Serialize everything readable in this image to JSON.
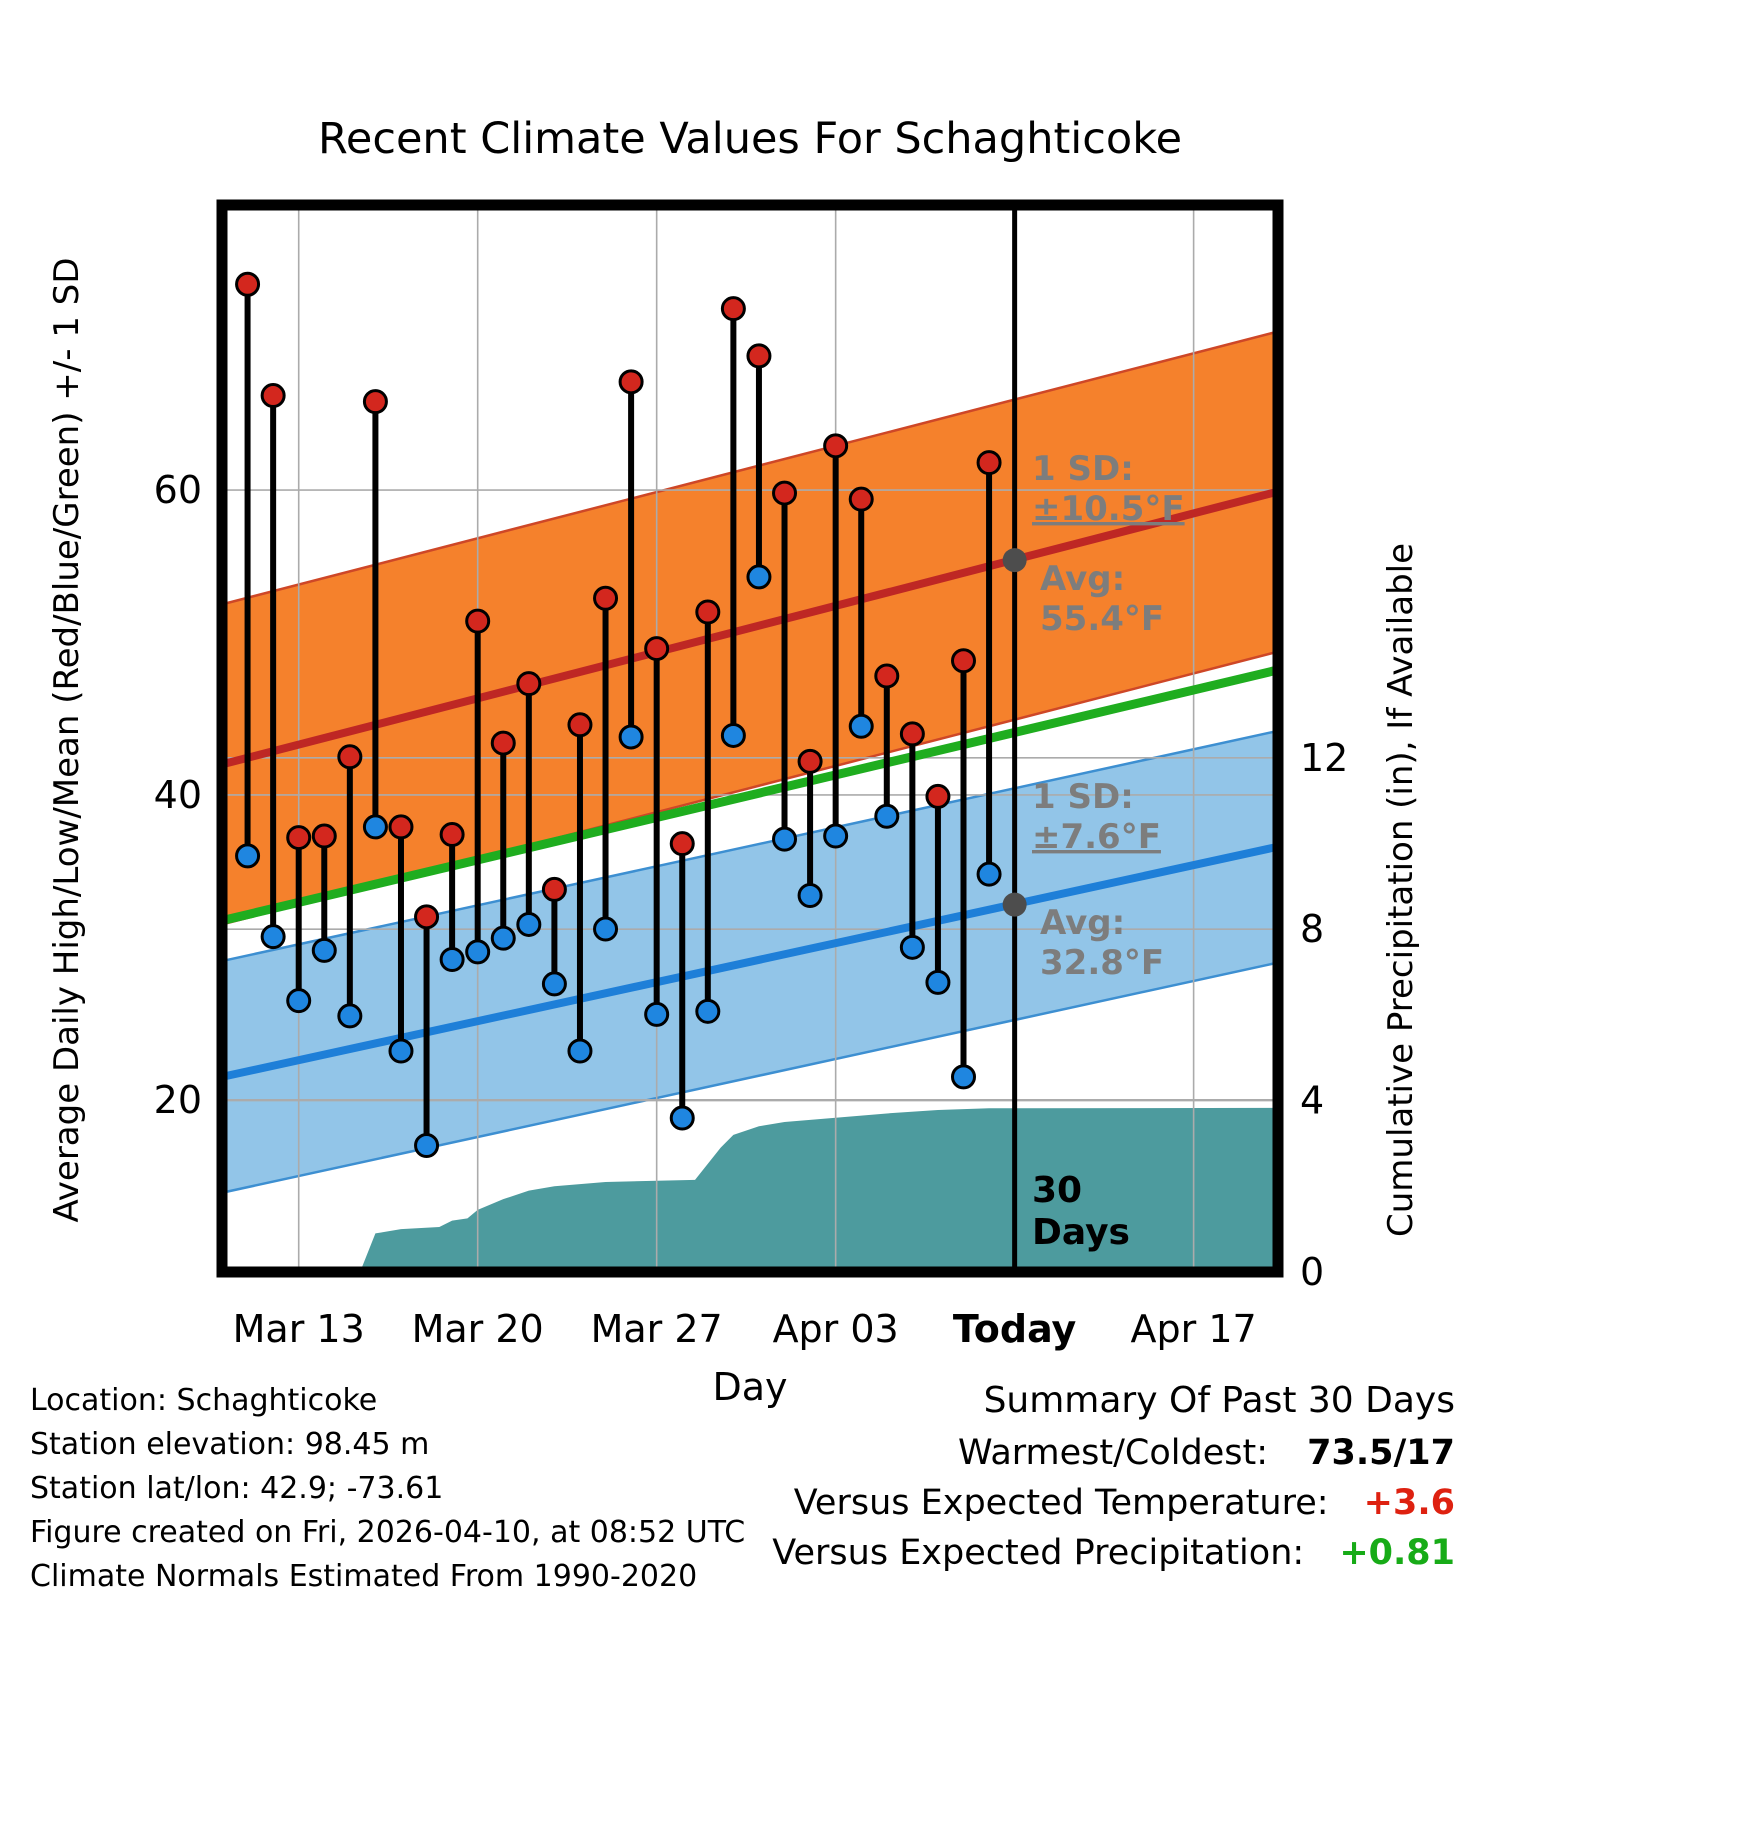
{
  "title": "Recent Climate Values For Schaghticoke",
  "axes": {
    "left_label": "Average Daily High/Low/Mean (Red/Blue/Green) +/- 1 SD",
    "right_label": "Cumulative Precipitation (in), If Available",
    "x_label": "Day"
  },
  "annotations": {
    "high_sd_line1": "1 SD:",
    "high_sd_line2": "±10.5°F",
    "high_avg_line1": "Avg:",
    "high_avg_line2": "55.4°F",
    "low_sd_line1": "1 SD:",
    "low_sd_line2": "±7.6°F",
    "low_avg_line1": "Avg:",
    "low_avg_line2": "32.8°F",
    "today_span_line1": "30",
    "today_span_line2": "Days"
  },
  "footer_left": [
    "Location: Schaghticoke",
    "Station elevation: 98.45 m",
    "Station lat/lon: 42.9; -73.61",
    "Figure created on Fri, 2026-04-10, at 08:52 UTC",
    "Climate Normals Estimated From 1990-2020"
  ],
  "summary": {
    "title": "Summary Of Past 30 Days",
    "warmest_coldest_label": "Warmest/Coldest:",
    "warmest_coldest_value": "73.5/17",
    "vs_temp_label": "Versus Expected Temperature:",
    "vs_temp_value": "+3.6",
    "vs_precip_label": "Versus Expected Precipitation:",
    "vs_precip_value": "+0.81"
  },
  "colors": {
    "high_band": "#F5812C",
    "high_band_edge": "#CE4727",
    "high_line": "#BE2724",
    "low_band": "#92C5E8",
    "low_band_edge": "#3D8FD1",
    "low_line": "#1E7FD8",
    "mean_line": "#1FAD1F",
    "precip_fill": "#4D9B9E",
    "marker_high": "#D3271E",
    "marker_low": "#1F86E0",
    "marker_outline": "#000000",
    "today_line": "#000000",
    "today_marker": "#4D4D4D",
    "annotation_gray": "#7D7D7D",
    "grid": "#ABABAB",
    "summary_temp": "#DE2110",
    "summary_precip": "#17AB17"
  },
  "chart_data": {
    "type": "line",
    "title": "Recent Climate Values For Schaghticoke",
    "xlabel": "Day",
    "ylabel_left": "Average Daily High/Low/Mean (Red/Blue/Green) +/- 1 SD",
    "ylabel_right": "Cumulative Precipitation (in), If Available",
    "x_axis": {
      "unit": "days since Mar 10",
      "domain": [
        0,
        41.3
      ],
      "ticks": [
        {
          "day": 3,
          "label": "Mar 13",
          "bold": false
        },
        {
          "day": 10,
          "label": "Mar 20",
          "bold": false
        },
        {
          "day": 17,
          "label": "Mar 27",
          "bold": false
        },
        {
          "day": 24,
          "label": "Apr 03",
          "bold": false
        },
        {
          "day": 31,
          "label": "Today",
          "bold": true
        },
        {
          "day": 38,
          "label": "Apr 17",
          "bold": false
        }
      ]
    },
    "temp_axis": {
      "range": [
        8.7,
        78.7
      ],
      "ticks": [
        20,
        40,
        60
      ]
    },
    "precip_axis": {
      "range": [
        0,
        24.9
      ],
      "ticks": [
        0,
        4,
        8,
        12
      ]
    },
    "today_day": 31,
    "grid": true,
    "climatology": {
      "high": {
        "avg_start": 42.0,
        "avg_end": 59.9,
        "avg_today": 55.4,
        "sd": 10.5
      },
      "low": {
        "avg_start": 21.5,
        "avg_end": 36.6,
        "avg_today": 32.8,
        "sd": 7.6
      },
      "mean": {
        "start": 31.75,
        "end": 48.2
      }
    },
    "daily": [
      {
        "day": 1,
        "date": "Mar 11",
        "high": 73.5,
        "low": 36.0
      },
      {
        "day": 2,
        "date": "Mar 12",
        "high": 66.2,
        "low": 30.7
      },
      {
        "day": 3,
        "date": "Mar 13",
        "high": 37.2,
        "low": 26.5
      },
      {
        "day": 4,
        "date": "Mar 14",
        "high": 37.3,
        "low": 29.8
      },
      {
        "day": 5,
        "date": "Mar 15",
        "high": 42.5,
        "low": 25.5
      },
      {
        "day": 6,
        "date": "Mar 16",
        "high": 65.8,
        "low": 37.9
      },
      {
        "day": 7,
        "date": "Mar 17",
        "high": 37.9,
        "low": 23.2
      },
      {
        "day": 8,
        "date": "Mar 18",
        "high": 32.0,
        "low": 17.0
      },
      {
        "day": 9,
        "date": "Mar 19",
        "high": 37.4,
        "low": 29.2
      },
      {
        "day": 10,
        "date": "Mar 20",
        "high": 51.4,
        "low": 29.7
      },
      {
        "day": 11,
        "date": "Mar 21",
        "high": 43.4,
        "low": 30.6
      },
      {
        "day": 12,
        "date": "Mar 22",
        "high": 47.3,
        "low": 31.5
      },
      {
        "day": 13,
        "date": "Mar 23",
        "high": 33.8,
        "low": 27.6
      },
      {
        "day": 14,
        "date": "Mar 24",
        "high": 44.6,
        "low": 23.2
      },
      {
        "day": 15,
        "date": "Mar 25",
        "high": 52.9,
        "low": 31.2
      },
      {
        "day": 16,
        "date": "Mar 26",
        "high": 67.1,
        "low": 43.8
      },
      {
        "day": 17,
        "date": "Mar 27",
        "high": 49.6,
        "low": 25.6
      },
      {
        "day": 18,
        "date": "Mar 28",
        "high": 36.8,
        "low": 18.8
      },
      {
        "day": 19,
        "date": "Mar 29",
        "high": 52.0,
        "low": 25.8
      },
      {
        "day": 20,
        "date": "Mar 30",
        "high": 71.9,
        "low": 43.9
      },
      {
        "day": 21,
        "date": "Mar 31",
        "high": 68.8,
        "low": 54.3
      },
      {
        "day": 22,
        "date": "Apr 01",
        "high": 59.8,
        "low": 37.1
      },
      {
        "day": 23,
        "date": "Apr 02",
        "high": 42.2,
        "low": 33.4
      },
      {
        "day": 24,
        "date": "Apr 03",
        "high": 62.9,
        "low": 37.3
      },
      {
        "day": 25,
        "date": "Apr 04",
        "high": 59.4,
        "low": 44.5
      },
      {
        "day": 26,
        "date": "Apr 05",
        "high": 47.8,
        "low": 38.6
      },
      {
        "day": 27,
        "date": "Apr 06",
        "high": 44.0,
        "low": 30.0
      },
      {
        "day": 28,
        "date": "Apr 07",
        "high": 39.9,
        "low": 27.7
      },
      {
        "day": 29,
        "date": "Apr 08",
        "high": 48.8,
        "low": 21.5
      },
      {
        "day": 30,
        "date": "Apr 09",
        "high": 61.8,
        "low": 34.8
      }
    ],
    "precip_cumulative": [
      {
        "day": 5.0,
        "in": 0.0
      },
      {
        "day": 5.4,
        "in": 0.0
      },
      {
        "day": 6.0,
        "in": 0.9
      },
      {
        "day": 7.0,
        "in": 1.0
      },
      {
        "day": 8.5,
        "in": 1.05
      },
      {
        "day": 9.0,
        "in": 1.2
      },
      {
        "day": 9.6,
        "in": 1.25
      },
      {
        "day": 10.0,
        "in": 1.45
      },
      {
        "day": 11.0,
        "in": 1.7
      },
      {
        "day": 12.0,
        "in": 1.9
      },
      {
        "day": 13.0,
        "in": 2.0
      },
      {
        "day": 14.0,
        "in": 2.05
      },
      {
        "day": 15.0,
        "in": 2.1
      },
      {
        "day": 18.5,
        "in": 2.15
      },
      {
        "day": 19.5,
        "in": 2.9
      },
      {
        "day": 20.0,
        "in": 3.2
      },
      {
        "day": 21.0,
        "in": 3.4
      },
      {
        "day": 22.0,
        "in": 3.5
      },
      {
        "day": 23.0,
        "in": 3.55
      },
      {
        "day": 24.0,
        "in": 3.6
      },
      {
        "day": 26.0,
        "in": 3.7
      },
      {
        "day": 28.0,
        "in": 3.78
      },
      {
        "day": 30.0,
        "in": 3.82
      },
      {
        "day": 41.3,
        "in": 3.83
      }
    ]
  }
}
